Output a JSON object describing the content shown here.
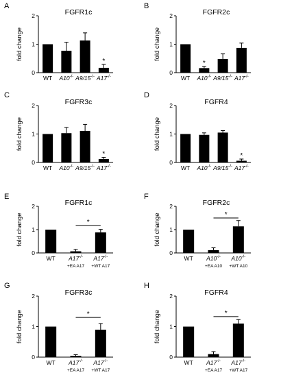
{
  "chart_data": [
    {
      "panel": "A",
      "title": "FGFR1c",
      "type": "bar",
      "ylabel": "fold change",
      "ylim": [
        0,
        2
      ],
      "yticks": [
        "0",
        "1",
        "2"
      ],
      "categories": [
        {
          "main": "WT",
          "italic": false,
          "sup": "",
          "sub": ""
        },
        {
          "main": "A10",
          "italic": true,
          "sup": "-/-",
          "sub": ""
        },
        {
          "main": "A9/15",
          "italic": true,
          "sup": "-/-",
          "sub": ""
        },
        {
          "main": "A17",
          "italic": true,
          "sup": "-/-",
          "sub": ""
        }
      ],
      "values": [
        1.0,
        0.77,
        1.13,
        0.17
      ],
      "errors": [
        0,
        0.3,
        0.27,
        0.12
      ],
      "stars": [
        "",
        "",
        "",
        "*"
      ],
      "brackets": []
    },
    {
      "panel": "B",
      "title": "FGFR2c",
      "type": "bar",
      "ylabel": "fold change",
      "ylim": [
        0,
        2
      ],
      "yticks": [
        "0",
        "1",
        "2"
      ],
      "categories": [
        {
          "main": "WT",
          "italic": false,
          "sup": "",
          "sub": ""
        },
        {
          "main": "A10",
          "italic": true,
          "sup": "-/-",
          "sub": ""
        },
        {
          "main": "A9/15",
          "italic": true,
          "sup": "-/-",
          "sub": ""
        },
        {
          "main": "A17",
          "italic": true,
          "sup": "-/-",
          "sub": ""
        }
      ],
      "values": [
        1.0,
        0.16,
        0.48,
        0.87
      ],
      "errors": [
        0,
        0.06,
        0.18,
        0.17
      ],
      "stars": [
        "",
        "*",
        "",
        ""
      ],
      "brackets": []
    },
    {
      "panel": "C",
      "title": "FGFR3c",
      "type": "bar",
      "ylabel": "fold change",
      "ylim": [
        0,
        2
      ],
      "yticks": [
        "0",
        "1",
        "2"
      ],
      "categories": [
        {
          "main": "WT",
          "italic": false,
          "sup": "",
          "sub": ""
        },
        {
          "main": "A10",
          "italic": true,
          "sup": "-/-",
          "sub": ""
        },
        {
          "main": "A9/15",
          "italic": true,
          "sup": "-/-",
          "sub": ""
        },
        {
          "main": "A17",
          "italic": true,
          "sup": "-/-",
          "sub": ""
        }
      ],
      "values": [
        1.0,
        1.03,
        1.11,
        0.12
      ],
      "errors": [
        0,
        0.2,
        0.23,
        0.06
      ],
      "stars": [
        "",
        "",
        "",
        "*"
      ],
      "brackets": []
    },
    {
      "panel": "D",
      "title": "FGFR4",
      "type": "bar",
      "ylabel": "fold change",
      "ylim": [
        0,
        2
      ],
      "yticks": [
        "0",
        "1",
        "2"
      ],
      "categories": [
        {
          "main": "WT",
          "italic": false,
          "sup": "",
          "sub": ""
        },
        {
          "main": "A10",
          "italic": true,
          "sup": "-/-",
          "sub": ""
        },
        {
          "main": "A9/15",
          "italic": true,
          "sup": "-/-",
          "sub": ""
        },
        {
          "main": "A17",
          "italic": true,
          "sup": "-/-",
          "sub": ""
        }
      ],
      "values": [
        1.0,
        0.97,
        1.05,
        0.06
      ],
      "errors": [
        0,
        0.07,
        0.07,
        0.06
      ],
      "stars": [
        "",
        "",
        "",
        "*"
      ],
      "brackets": []
    },
    {
      "panel": "E",
      "title": "FGFR1c",
      "type": "bar",
      "ylabel": "fold change",
      "ylim": [
        0,
        2
      ],
      "yticks": [
        "0",
        "1",
        "2"
      ],
      "categories": [
        {
          "main": "WT",
          "italic": false,
          "sup": "",
          "sub": ""
        },
        {
          "main": "A17",
          "italic": true,
          "sup": "-/-",
          "sub": "+EA A17"
        },
        {
          "main": "A17",
          "italic": true,
          "sup": "-/-",
          "sub": "+WT A17"
        }
      ],
      "values": [
        1.0,
        0.07,
        0.88
      ],
      "errors": [
        0,
        0.08,
        0.13
      ],
      "stars": [
        "",
        "",
        ""
      ],
      "brackets": [
        {
          "from": 1,
          "to": 2,
          "label": "*",
          "y": 1.18
        }
      ]
    },
    {
      "panel": "F",
      "title": "FGFR2c",
      "type": "bar",
      "ylabel": "fold change",
      "ylim": [
        0,
        2
      ],
      "yticks": [
        "0",
        "1",
        "2"
      ],
      "categories": [
        {
          "main": "WT",
          "italic": false,
          "sup": "",
          "sub": ""
        },
        {
          "main": "A10",
          "italic": true,
          "sup": "-/-",
          "sub": "+EA A10"
        },
        {
          "main": "A10",
          "italic": true,
          "sup": "-/-",
          "sub": "+WT A10"
        }
      ],
      "values": [
        1.0,
        0.12,
        1.14
      ],
      "errors": [
        0,
        0.1,
        0.25
      ],
      "stars": [
        "",
        "",
        ""
      ],
      "brackets": [
        {
          "from": 1,
          "to": 2,
          "label": "*",
          "y": 1.5
        }
      ]
    },
    {
      "panel": "G",
      "title": "FGFR3c",
      "type": "bar",
      "ylabel": "fold change",
      "ylim": [
        0,
        2
      ],
      "yticks": [
        "0",
        "1",
        "2"
      ],
      "categories": [
        {
          "main": "WT",
          "italic": false,
          "sup": "",
          "sub": ""
        },
        {
          "main": "A17",
          "italic": true,
          "sup": "-/-",
          "sub": "+EA A17"
        },
        {
          "main": "A17",
          "italic": true,
          "sup": "-/-",
          "sub": "+WT A17"
        }
      ],
      "values": [
        1.0,
        0.04,
        0.9
      ],
      "errors": [
        0,
        0.04,
        0.2
      ],
      "stars": [
        "",
        "",
        ""
      ],
      "brackets": [
        {
          "from": 1,
          "to": 2,
          "label": "*",
          "y": 1.3
        }
      ]
    },
    {
      "panel": "H",
      "title": "FGFR4",
      "type": "bar",
      "ylabel": "fold change",
      "ylim": [
        0,
        2
      ],
      "yticks": [
        "0",
        "1",
        "2"
      ],
      "categories": [
        {
          "main": "WT",
          "italic": false,
          "sup": "",
          "sub": ""
        },
        {
          "main": "A17",
          "italic": true,
          "sup": "-/-",
          "sub": "+EA A17"
        },
        {
          "main": "A17",
          "italic": true,
          "sup": "-/-",
          "sub": "+WT A17"
        }
      ],
      "values": [
        1.0,
        0.1,
        1.1
      ],
      "errors": [
        0,
        0.08,
        0.13
      ],
      "stars": [
        "",
        "",
        ""
      ],
      "brackets": [
        {
          "from": 1,
          "to": 2,
          "label": "*",
          "y": 1.33
        }
      ]
    }
  ]
}
